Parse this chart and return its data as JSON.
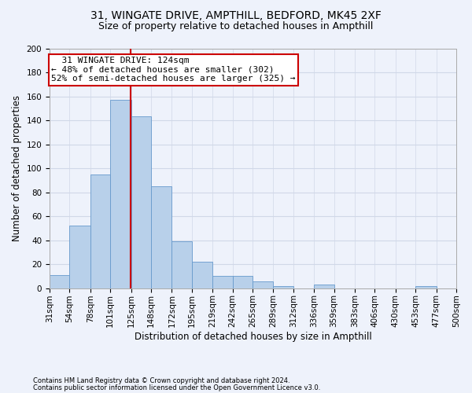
{
  "title_line1": "31, WINGATE DRIVE, AMPTHILL, BEDFORD, MK45 2XF",
  "title_line2": "Size of property relative to detached houses in Ampthill",
  "xlabel": "Distribution of detached houses by size in Ampthill",
  "ylabel": "Number of detached properties",
  "bar_values": [
    11,
    52,
    95,
    157,
    143,
    85,
    39,
    22,
    10,
    10,
    6,
    2,
    0,
    3,
    0,
    0,
    0,
    0,
    2,
    0
  ],
  "bin_edges": [
    31,
    54,
    78,
    101,
    125,
    148,
    172,
    195,
    219,
    242,
    265,
    289,
    312,
    336,
    359,
    383,
    406,
    430,
    453,
    477,
    500
  ],
  "tick_labels": [
    "31sqm",
    "54sqm",
    "78sqm",
    "101sqm",
    "125sqm",
    "148sqm",
    "172sqm",
    "195sqm",
    "219sqm",
    "242sqm",
    "265sqm",
    "289sqm",
    "312sqm",
    "336sqm",
    "359sqm",
    "383sqm",
    "406sqm",
    "430sqm",
    "453sqm",
    "477sqm",
    "500sqm"
  ],
  "bar_facecolor": "#b8d0ea",
  "bar_edgecolor": "#6699cc",
  "property_line_x": 124,
  "annotation_text": "  31 WINGATE DRIVE: 124sqm\n← 48% of detached houses are smaller (302)\n52% of semi-detached houses are larger (325) →",
  "annotation_box_color": "#ffffff",
  "annotation_border_color": "#cc0000",
  "vline_color": "#cc0000",
  "grid_color": "#d0d8e8",
  "background_color": "#eef2fb",
  "ylim": [
    0,
    200
  ],
  "yticks": [
    0,
    20,
    40,
    60,
    80,
    100,
    120,
    140,
    160,
    180,
    200
  ],
  "footnote1": "Contains HM Land Registry data © Crown copyright and database right 2024.",
  "footnote2": "Contains public sector information licensed under the Open Government Licence v3.0.",
  "title_fontsize": 10,
  "subtitle_fontsize": 9,
  "axis_label_fontsize": 8.5,
  "tick_fontsize": 7.5,
  "annot_fontsize": 8
}
